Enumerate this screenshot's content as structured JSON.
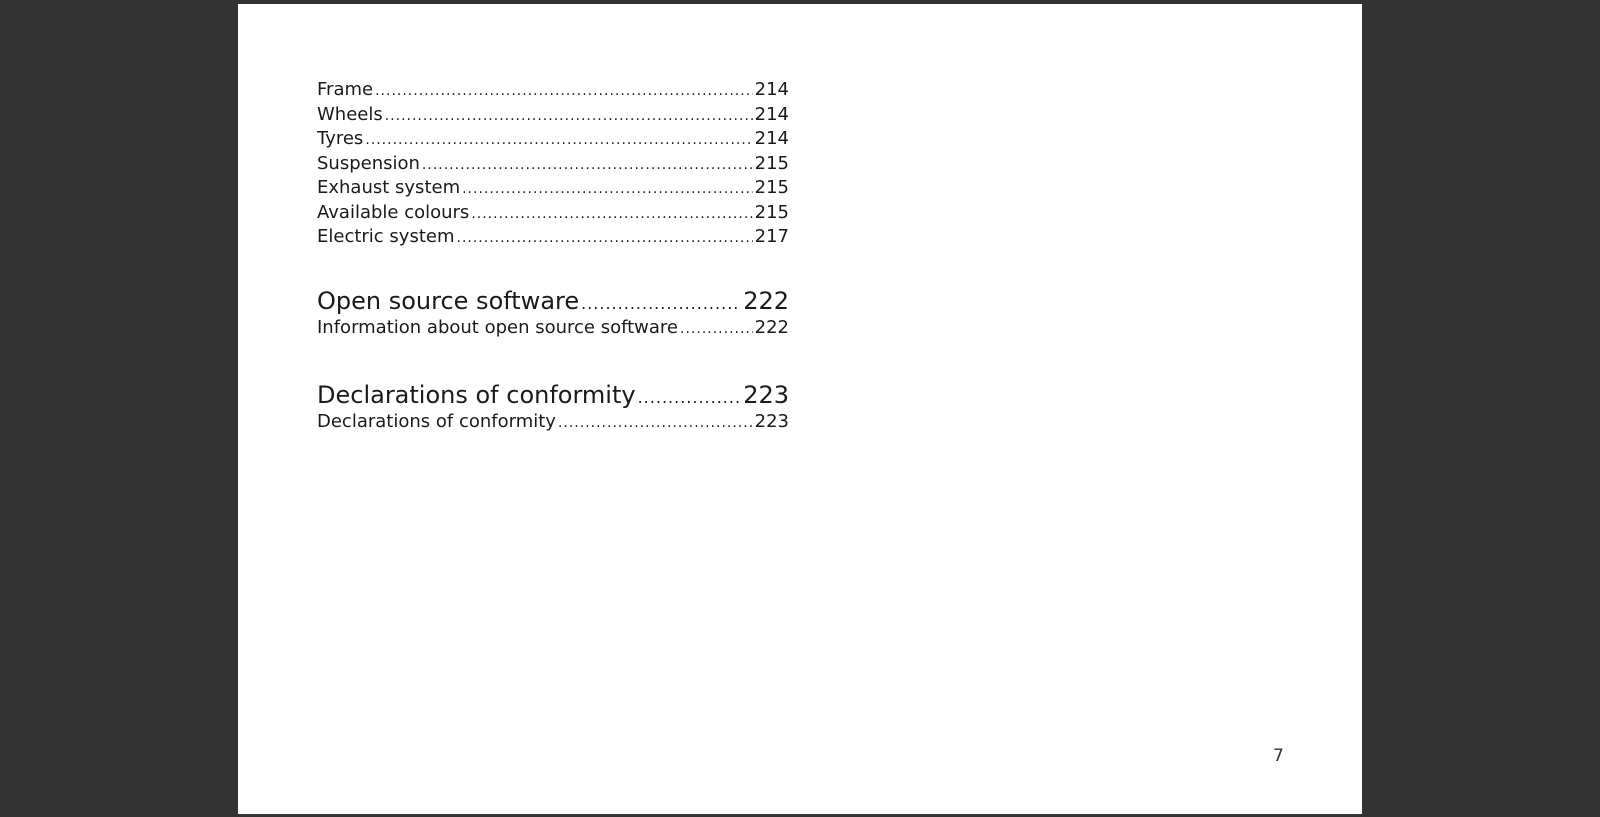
{
  "toc": {
    "group1": [
      {
        "label": "Frame",
        "page": "214"
      },
      {
        "label": "Wheels",
        "page": "214"
      },
      {
        "label": "Tyres",
        "page": "214"
      },
      {
        "label": "Suspension",
        "page": "215"
      },
      {
        "label": "Exhaust system",
        "page": "215"
      },
      {
        "label": "Available colours",
        "page": "215"
      },
      {
        "label": "Electric system",
        "page": "217"
      }
    ],
    "section_open_source": {
      "title": "Open source software",
      "page": "222",
      "entry_label": "Information about open source software",
      "entry_page": "222"
    },
    "section_conformity": {
      "title": "Declarations of conformity",
      "page": "223",
      "entry_label": "Declarations of conformity",
      "entry_page": "223"
    }
  },
  "page_number": "7",
  "colors": {
    "viewer_background": "#333333",
    "page_background": "#ffffff",
    "text": "#1a1a1a"
  }
}
